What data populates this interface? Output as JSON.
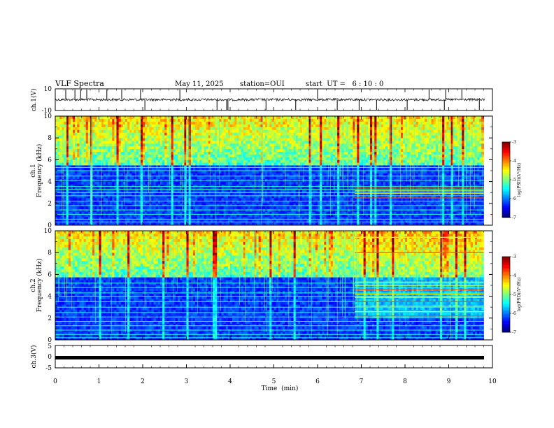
{
  "header": {
    "title": "VLF Spectra",
    "date": "May 11, 2025",
    "station": "station=OUI",
    "start": "start  UT =   6 : 10 : 0"
  },
  "colors": {
    "jet": [
      "#00007f",
      "#0000ff",
      "#007fff",
      "#00ffff",
      "#7fff7f",
      "#ffff00",
      "#ff7f00",
      "#ff0000",
      "#7f0000"
    ],
    "trace": "#000000"
  },
  "chart_data": [
    {
      "type": "line",
      "name": "ch1-waveform",
      "ylabel": "ch.1(V)",
      "yticks": [
        "10",
        "-10"
      ],
      "ylim": [
        -10,
        10
      ],
      "xlim": [
        0,
        10
      ],
      "baseline": 0,
      "spike_times_min": [
        0.24,
        0.45,
        0.58,
        0.72,
        1.18,
        1.52,
        1.95,
        2.05,
        2.85,
        3.7,
        3.92,
        3.95,
        4.82,
        5.5,
        6.0,
        6.45,
        6.95,
        7.35,
        8.05,
        8.55,
        8.9,
        8.93,
        9.3,
        9.7
      ]
    },
    {
      "type": "heatmap",
      "name": "ch1-spectrogram",
      "channel_label": "ch.1",
      "ylabel": "Frequency (kHz)",
      "yticks": [
        "0",
        "2",
        "4",
        "6",
        "8",
        "10"
      ],
      "ylim": [
        0,
        10
      ],
      "xlim": [
        0,
        9.8
      ],
      "colorbar": {
        "label": "log(PSD)(V²/Hz)",
        "ticks": [
          "-3",
          "-4",
          "-5",
          "-6",
          "-7"
        ],
        "range": [
          -7,
          -3
        ]
      },
      "cutoff_khz": 5.5,
      "lines_khz": [
        0.3,
        0.55,
        1.0,
        1.4,
        1.8,
        2.2,
        2.7,
        3.0,
        3.3,
        3.55,
        4.1,
        4.5,
        5.0,
        5.3
      ],
      "late_lines_from_min": 6.85,
      "late_lines_khz": [
        2.5,
        2.9,
        3.15,
        3.4
      ]
    },
    {
      "type": "heatmap",
      "name": "ch2-spectrogram",
      "channel_label": "ch.2",
      "ylabel": "Frequency (kHz)",
      "yticks": [
        "0",
        "2",
        "4",
        "6",
        "8",
        "10"
      ],
      "ylim": [
        0,
        10
      ],
      "xlim": [
        0,
        9.8
      ],
      "colorbar": {
        "label": "log(PSD)(V²/Hz)",
        "ticks": [
          "-3",
          "-4",
          "-5",
          "-6",
          "-7"
        ],
        "range": [
          -7,
          -3
        ]
      },
      "cutoff_khz": 5.7,
      "lines_khz": [
        0.2,
        0.5,
        0.9,
        1.3,
        1.7,
        2.1,
        2.5,
        3.0,
        3.5,
        4.0,
        4.3,
        4.8,
        5.2
      ],
      "late_lines_from_min": 6.85,
      "late_lines_khz": [
        2.2,
        2.6,
        3.1,
        3.5,
        3.9,
        4.2,
        4.6,
        5.0,
        5.3,
        8.0,
        9.4
      ]
    },
    {
      "type": "line",
      "name": "ch3-waveform",
      "ylabel": "ch.3(V)",
      "yticks": [
        "5",
        "0",
        "-5"
      ],
      "ylim": [
        -5,
        5
      ],
      "xlim": [
        0,
        10
      ],
      "baseline": 0
    }
  ],
  "xaxis": {
    "label": "Time  (min)",
    "ticks": [
      "0",
      "1",
      "2",
      "3",
      "4",
      "5",
      "6",
      "7",
      "8",
      "9",
      "10"
    ],
    "range": [
      0,
      10
    ]
  }
}
